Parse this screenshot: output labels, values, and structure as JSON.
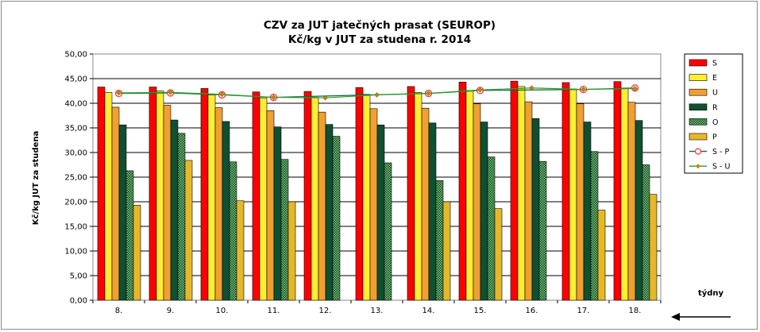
{
  "chart_data": {
    "type": "bar",
    "title": "CZV za JUT jatečných prasat (SEUROP)",
    "subtitle": "Kč/kg v JUT za studena r. 2014",
    "ylabel": "Kč/kg  JUT za studena",
    "xlabel": "týdny",
    "ylim": [
      0,
      50
    ],
    "ytick_labels": [
      "0,00",
      "5,00",
      "10,00",
      "15,00",
      "20,00",
      "25,00",
      "30,00",
      "35,00",
      "40,00",
      "45,00",
      "50,00"
    ],
    "grid": true,
    "legend_position": "right",
    "categories": [
      "8.",
      "9.",
      "10.",
      "11.",
      "12.",
      "13.",
      "14.",
      "15.",
      "16.",
      "17.",
      "18."
    ],
    "series": [
      {
        "name": "S",
        "kind": "bar",
        "color": "#ff0000",
        "pattern": "solid",
        "values": [
          43.3,
          43.3,
          43.0,
          42.3,
          42.4,
          43.2,
          43.4,
          44.3,
          44.5,
          44.2,
          44.4
        ]
      },
      {
        "name": "E",
        "kind": "bar",
        "color": "#ffee33",
        "pattern": "solid",
        "values": [
          42.2,
          42.5,
          41.7,
          41.1,
          41.2,
          41.8,
          42.2,
          42.6,
          43.4,
          42.9,
          43.1
        ]
      },
      {
        "name": "U",
        "kind": "bar",
        "color": "#f0a030",
        "pattern": "solid",
        "values": [
          39.2,
          39.6,
          39.1,
          38.5,
          38.2,
          38.9,
          39.0,
          39.9,
          40.3,
          39.9,
          40.2
        ]
      },
      {
        "name": "R",
        "kind": "bar",
        "color": "#0f5032",
        "pattern": "solid",
        "values": [
          35.6,
          36.6,
          36.3,
          35.2,
          35.7,
          35.6,
          36.0,
          36.2,
          36.9,
          36.2,
          36.5
        ]
      },
      {
        "name": "O",
        "kind": "bar",
        "color": "#3f8a3f",
        "pattern": "dotted",
        "values": [
          26.3,
          33.9,
          28.1,
          28.6,
          33.3,
          27.9,
          24.3,
          29.1,
          28.2,
          30.2,
          27.5
        ]
      },
      {
        "name": "P",
        "kind": "bar",
        "color": "#e6b829",
        "pattern": "solid",
        "values": [
          19.3,
          28.4,
          20.2,
          20.0,
          null,
          null,
          20.0,
          18.6,
          null,
          18.3,
          21.5
        ]
      },
      {
        "name": "S - P",
        "kind": "line",
        "color": "#0a6a3a",
        "marker": "circle",
        "marker_color": "#ff3333",
        "values": [
          42.0,
          42.1,
          41.7,
          41.2,
          null,
          null,
          42.0,
          42.6,
          null,
          42.8,
          43.1
        ]
      },
      {
        "name": "S - U",
        "kind": "line",
        "color": "#2e9a2e",
        "marker": "diamond",
        "marker_color": "#b8860b",
        "values": [
          42.1,
          42.2,
          41.8,
          41.2,
          41.1,
          41.7,
          42.0,
          42.7,
          43.1,
          42.8,
          43.0
        ]
      }
    ]
  }
}
